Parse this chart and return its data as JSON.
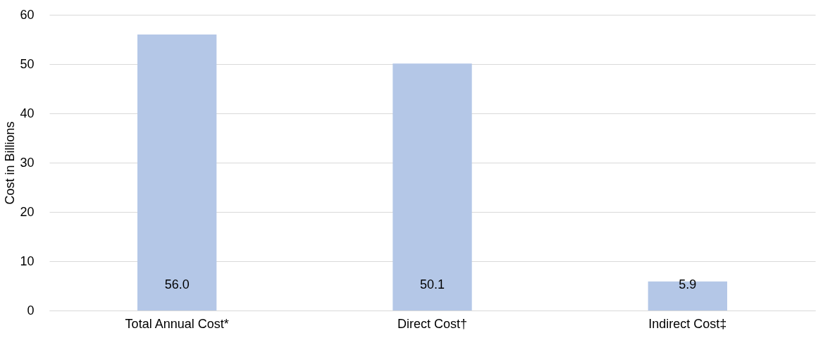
{
  "chart_data": {
    "type": "bar",
    "ylabel": "Cost in Billions",
    "categories": [
      "Total Annual Cost*",
      "Direct Cost†",
      "Indirect Cost‡"
    ],
    "values": [
      56.0,
      50.1,
      5.9
    ],
    "value_labels": [
      "56.0",
      "50.1",
      "5.9"
    ],
    "color": "#b4c7e7",
    "ylim": [
      0,
      60
    ],
    "yticks": [
      0,
      10,
      20,
      30,
      40,
      50,
      60
    ],
    "grid": "y"
  }
}
